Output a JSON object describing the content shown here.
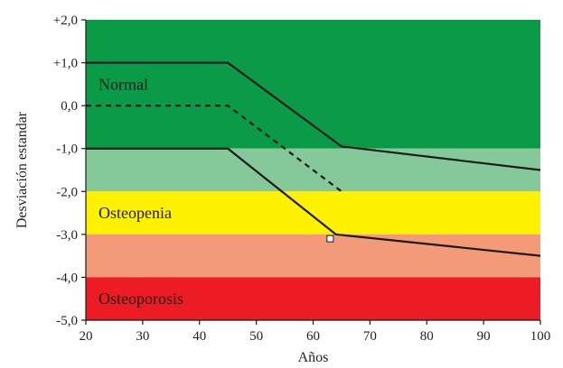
{
  "chart_data": {
    "type": "line",
    "xlabel": "Años",
    "ylabel": "Desviación estandar",
    "xlim": [
      20,
      100
    ],
    "ylim": [
      -5,
      2
    ],
    "x_ticks": [
      "20",
      "30",
      "40",
      "50",
      "60",
      "70",
      "80",
      "90",
      "100"
    ],
    "x_tick_values": [
      20,
      30,
      40,
      50,
      60,
      70,
      80,
      90,
      100
    ],
    "y_ticks": [
      "+2,0",
      "+1,0",
      "0,0",
      "-1,0",
      "-2,0",
      "-3,0",
      "-4,0",
      "-5,0"
    ],
    "y_tick_values": [
      2,
      1,
      0,
      -1,
      -2,
      -3,
      -4,
      -5
    ],
    "bands": [
      {
        "from": -1,
        "to": 2,
        "color": "#0a9a48",
        "label": "Normal"
      },
      {
        "from": -2,
        "to": -1,
        "color": "#85c99a",
        "label": ""
      },
      {
        "from": -3,
        "to": -2,
        "color": "#fff200",
        "label": "Osteopenia"
      },
      {
        "from": -4,
        "to": -3,
        "color": "#f39a78",
        "label": ""
      },
      {
        "from": -5,
        "to": -4,
        "color": "#ed1c24",
        "label": "Osteoporosis"
      }
    ],
    "series": [
      {
        "style": "solid",
        "x": [
          20,
          45,
          65,
          100
        ],
        "y": [
          1,
          1,
          -0.95,
          -1.5
        ]
      },
      {
        "style": "dashed",
        "x": [
          20,
          45,
          65
        ],
        "y": [
          0,
          0,
          -2
        ]
      },
      {
        "style": "solid",
        "x": [
          20,
          45,
          64,
          100
        ],
        "y": [
          -1,
          -1,
          -3,
          -3.5
        ]
      }
    ],
    "marker": {
      "x": 63,
      "y": -3.1,
      "shape": "open-square"
    }
  }
}
